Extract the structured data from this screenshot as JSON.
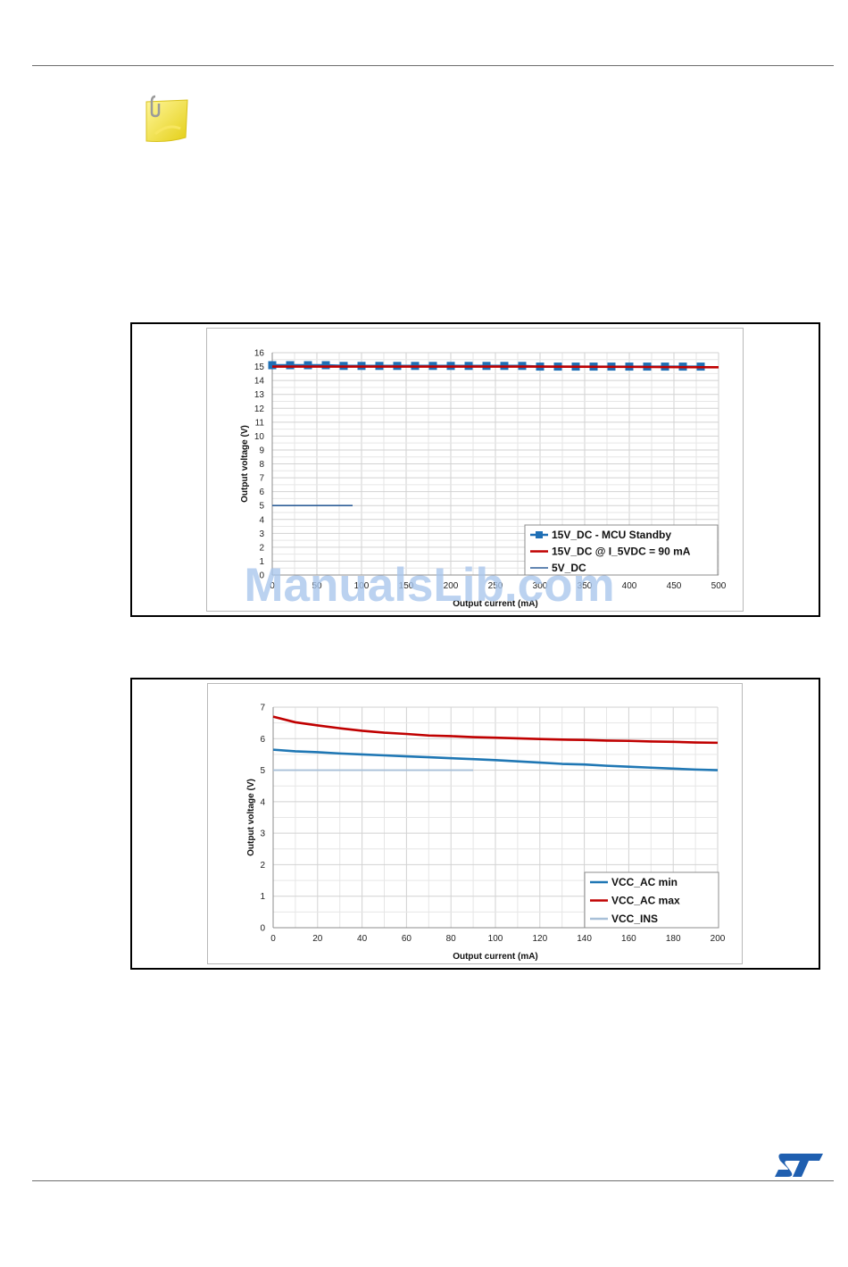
{
  "watermark": "ManualsLib.com",
  "logo_alt": "ST",
  "chart_data": [
    {
      "type": "line",
      "title": "",
      "xlabel": "Output current (mA)",
      "ylabel": "Output voltage  (V)",
      "xlim": [
        0,
        500
      ],
      "ylim": [
        0,
        16
      ],
      "xticks": [
        0,
        50,
        100,
        150,
        200,
        250,
        300,
        350,
        400,
        450,
        500
      ],
      "yticks": [
        0,
        1,
        2,
        3,
        4,
        5,
        6,
        7,
        8,
        9,
        10,
        11,
        12,
        13,
        14,
        15,
        16
      ],
      "grid": true,
      "legend_position": "bottom-right",
      "series": [
        {
          "name": "15V_DC - MCU Standby",
          "color": "#1f6fb5",
          "marker": "square",
          "x": [
            0,
            20,
            40,
            60,
            80,
            100,
            120,
            140,
            160,
            180,
            200,
            220,
            240,
            260,
            280,
            300,
            320,
            340,
            360,
            380,
            400,
            420,
            440,
            460,
            480
          ],
          "y": [
            15.1,
            15.1,
            15.1,
            15.1,
            15.05,
            15.05,
            15.05,
            15.05,
            15.05,
            15.05,
            15.05,
            15.05,
            15.05,
            15.05,
            15.05,
            15.0,
            15.0,
            15.0,
            15.0,
            15.0,
            15.0,
            15.0,
            15.0,
            15.0,
            15.0
          ]
        },
        {
          "name": "15V_DC @ I_5VDC = 90 mA",
          "color": "#c00000",
          "x": [
            0,
            100,
            200,
            300,
            400,
            500
          ],
          "y": [
            15.0,
            15.0,
            15.0,
            15.0,
            14.98,
            14.95
          ]
        },
        {
          "name": "5V_DC",
          "color": "#2f5f98",
          "x": [
            0,
            90
          ],
          "y": [
            5.0,
            5.0
          ]
        }
      ]
    },
    {
      "type": "line",
      "title": "",
      "xlabel": "Output current (mA)",
      "ylabel": "Output voltage  (V)",
      "xlim": [
        0,
        200
      ],
      "ylim": [
        0,
        7
      ],
      "xticks": [
        0,
        20,
        40,
        60,
        80,
        100,
        120,
        140,
        160,
        180,
        200
      ],
      "yticks": [
        0,
        1,
        2,
        3,
        4,
        5,
        6,
        7
      ],
      "grid": true,
      "legend_position": "bottom-right",
      "series": [
        {
          "name": "VCC_AC min",
          "color": "#1f77b4",
          "x": [
            0,
            10,
            20,
            30,
            40,
            50,
            60,
            70,
            80,
            90,
            100,
            110,
            120,
            130,
            140,
            150,
            160,
            170,
            180,
            190,
            200
          ],
          "y": [
            5.65,
            5.6,
            5.57,
            5.53,
            5.5,
            5.47,
            5.44,
            5.41,
            5.38,
            5.35,
            5.32,
            5.28,
            5.24,
            5.2,
            5.18,
            5.14,
            5.11,
            5.08,
            5.05,
            5.02,
            5.0
          ]
        },
        {
          "name": "VCC_AC max",
          "color": "#c00000",
          "x": [
            0,
            10,
            20,
            30,
            40,
            50,
            60,
            70,
            80,
            90,
            100,
            110,
            120,
            130,
            140,
            150,
            160,
            170,
            180,
            190,
            200
          ],
          "y": [
            6.7,
            6.52,
            6.42,
            6.33,
            6.25,
            6.19,
            6.15,
            6.1,
            6.08,
            6.05,
            6.03,
            6.01,
            5.99,
            5.97,
            5.96,
            5.94,
            5.93,
            5.91,
            5.9,
            5.88,
            5.87
          ]
        },
        {
          "name": "VCC_INS",
          "color": "#a8c0d8",
          "x": [
            0,
            90
          ],
          "y": [
            5.0,
            5.0
          ]
        }
      ]
    }
  ]
}
